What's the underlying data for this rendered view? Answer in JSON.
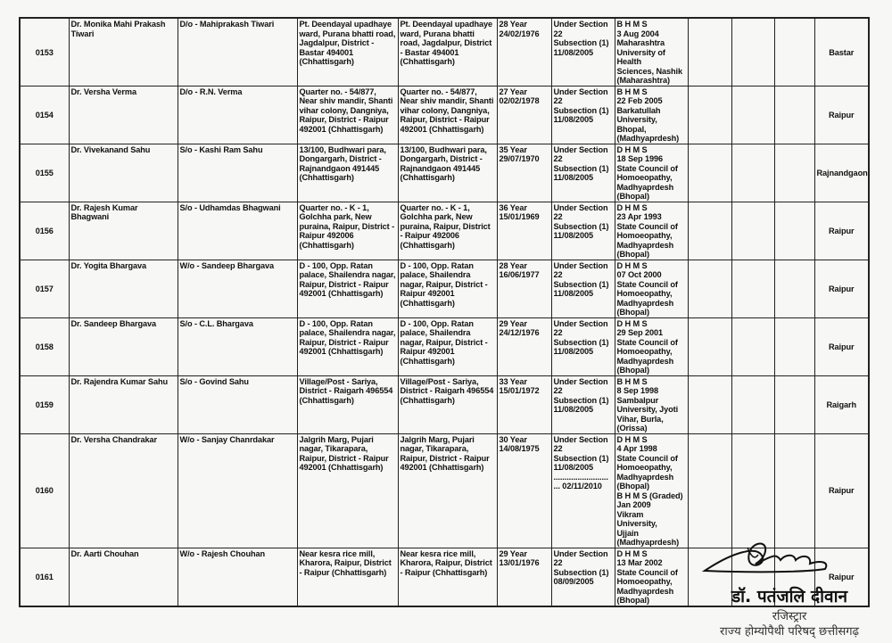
{
  "rows": [
    {
      "no": "0153",
      "name": "Dr. Monika  Mahi Prakash Tiwari",
      "relation": "D/o - Mahiprakash Tiwari",
      "address1": "Pt. Deendayal upadhaye ward, Purana bhatti road, Jagdalpur, District - Bastar 494001 (Chhattisgarh)",
      "address2": "Pt. Deendayal upadhaye ward, Purana bhatti road, Jagdalpur, District - Bastar 494001 (Chhattisgarh)",
      "age_dob": "28 Year\n24/02/1976",
      "registration": "Under Section 22\nSubsection (1)\n11/08/2005",
      "qualification": "B H M S\n3 Aug 2004\nMaharashtra\nUniversity  of Health\nSciences, Nashik\n(Maharashtra)",
      "district": "Bastar"
    },
    {
      "no": "0154",
      "name": "Dr. Versha Verma",
      "relation": "D/o - R.N. Verma",
      "address1": "Quarter no. - 54/877, Near shiv mandir, Shanti vihar colony, Dangniya,  Raipur, District - Raipur 492001 (Chhattisgarh)",
      "address2": "Quarter no. - 54/877, Near shiv mandir, Shanti vihar colony, Dangniya,  Raipur, District - Raipur 492001 (Chhattisgarh)",
      "age_dob": "27 Year\n02/02/1978",
      "registration": "Under Section 22\nSubsection (1)\n11/08/2005",
      "qualification": "B H M S\n22 Feb 2005\nBarkatullah\nUniversity,  Bhopal,\n(Madhyaprdesh)",
      "district": "Raipur"
    },
    {
      "no": "0155",
      "name": "Dr. Vivekanand Sahu",
      "relation": "S/o - Kashi Ram Sahu",
      "address1": "13/100, Budhwari para, Dongargarh, District - Rajnandgaon 491445 (Chhattisgarh)",
      "address2": "13/100, Budhwari para, Dongargarh, District - Rajnandgaon 491445 (Chhattisgarh)",
      "age_dob": "35 Year\n29/07/1970",
      "registration": "Under Section 22\nSubsection (1)\n11/08/2005",
      "qualification": "D H M S\n18 Sep 1996\nState Council of\nHomoeopathy,\nMadhyaprdesh\n(Bhopal)",
      "district": "Rajnandgaon"
    },
    {
      "no": "0156",
      "name": "Dr. Rajesh Kumar  Bhagwani",
      "relation": "S/o - Udhamdas Bhagwani",
      "address1": "Quarter no. - K - 1, Golchha park, New puraina, Raipur, District - Raipur 492006 (Chhattisgarh)",
      "address2": "Quarter no. - K - 1,\nGolchha park, New puraina, Raipur, District - Raipur 492006 (Chhattisgarh)",
      "age_dob": "36 Year\n15/01/1969",
      "registration": "Under Section 22\nSubsection (1)\n11/08/2005",
      "qualification": "D H M S\n23 Apr 1993\nState Council of\nHomoeopathy,\nMadhyaprdesh\n(Bhopal)",
      "district": "Raipur"
    },
    {
      "no": "0157",
      "name": "Dr. Yogita Bhargava",
      "relation": "W/o - Sandeep Bhargava",
      "address1": "D - 100, Opp. Ratan palace, Shailendra nagar,  Raipur, District - Raipur 492001 (Chhattisgarh)",
      "address2": "D - 100, Opp. Ratan palace, Shailendra nagar, Raipur, District - Raipur 492001  (Chhattisgarh)",
      "age_dob": "28 Year\n16/06/1977",
      "registration": "Under Section 22\nSubsection (1)\n11/08/2005",
      "qualification": "D H M S\n07 Oct 2000\nState Council of\nHomoeopathy,\nMadhyaprdesh\n(Bhopal)",
      "district": "Raipur"
    },
    {
      "no": "0158",
      "name": "Dr. Sandeep Bhargava",
      "relation": "S/o - C.L. Bhargava",
      "address1": "D - 100, Opp. Ratan palace, Shailendra nagar,  Raipur, District - Raipur 492001 (Chhattisgarh)",
      "address2": "D - 100, Opp. Ratan palace, Shailendra nagar, Raipur, District - Raipur 492001  (Chhattisgarh)",
      "age_dob": "29 Year\n24/12/1976",
      "registration": "Under Section 22\nSubsection (1)\n11/08/2005",
      "qualification": "D H M S\n29 Sep 2001\nState Council of\nHomoeopathy,\nMadhyaprdesh\n(Bhopal)",
      "district": "Raipur"
    },
    {
      "no": "0159",
      "name": "Dr. Rajendra Kumar Sahu",
      "relation": "S/o - Govind Sahu",
      "address1": "Village/Post - Sariya, District - Raigarh 496554 (Chhattisgarh)",
      "address2": "Village/Post - Sariya, District - Raigarh 496554 (Chhattisgarh)",
      "age_dob": "33 Year\n15/01/1972",
      "registration": "Under Section 22\nSubsection (1)\n11/08/2005",
      "qualification": "B H M S\n8 Sep 1998\nSambalpur\nUniversity,  Jyoti\nVihar, Burla,\n(Orissa)",
      "district": "Raigarh"
    },
    {
      "no": "0160",
      "name": "Dr. Versha Chandrakar",
      "relation": "W/o - Sanjay Chanrdakar",
      "address1": "Jalgrih Marg, Pujari nagar, Tikarapara, Raipur, District - Raipur 492001 (Chhattisgarh)",
      "address2": "Jalgrih Marg, Pujari nagar, Tikarapara, Raipur, District - Raipur 492001 (Chhattisgarh)",
      "age_dob": "30 Year\n14/08/1975",
      "registration": "Under Section 22\nSubsection (1)\n11/08/2005\n.........................\n... 02/11/2010",
      "qualification": "D H M S\n4 Apr 1998\nState Council of\nHomoeopathy,\nMadhyaprdesh\n(Bhopal)\nB H M S (Graded)\nJan 2009\nVikram University,\nUjjain\n(Madhyaprdesh)",
      "district": "Raipur"
    },
    {
      "no": "0161",
      "name": "Dr. Aarti Chouhan",
      "relation": "W/o - Rajesh Chouhan",
      "address1": "Near kesra rice mill, Kharora, Raipur, District - Raipur (Chhattisgarh)",
      "address2": "Near kesra rice mill, Kharora, Raipur, District - Raipur (Chhattisgarh)",
      "age_dob": "29 Year\n13/01/1976",
      "registration": "Under Section 22\nSubsection (1)\n08/09/2005",
      "qualification": "D H M S\n13 Mar 2002\nState Council of\nHomoeopathy,\nMadhyaprdesh\n(Bhopal)",
      "district": "Raipur"
    }
  ],
  "signature": {
    "name": "डॉ. पतंजलि दीवान",
    "title": "रजिस्ट्रार",
    "organization": "राज्य होम्योपैथी परिषद् छत्तीसगढ़"
  }
}
